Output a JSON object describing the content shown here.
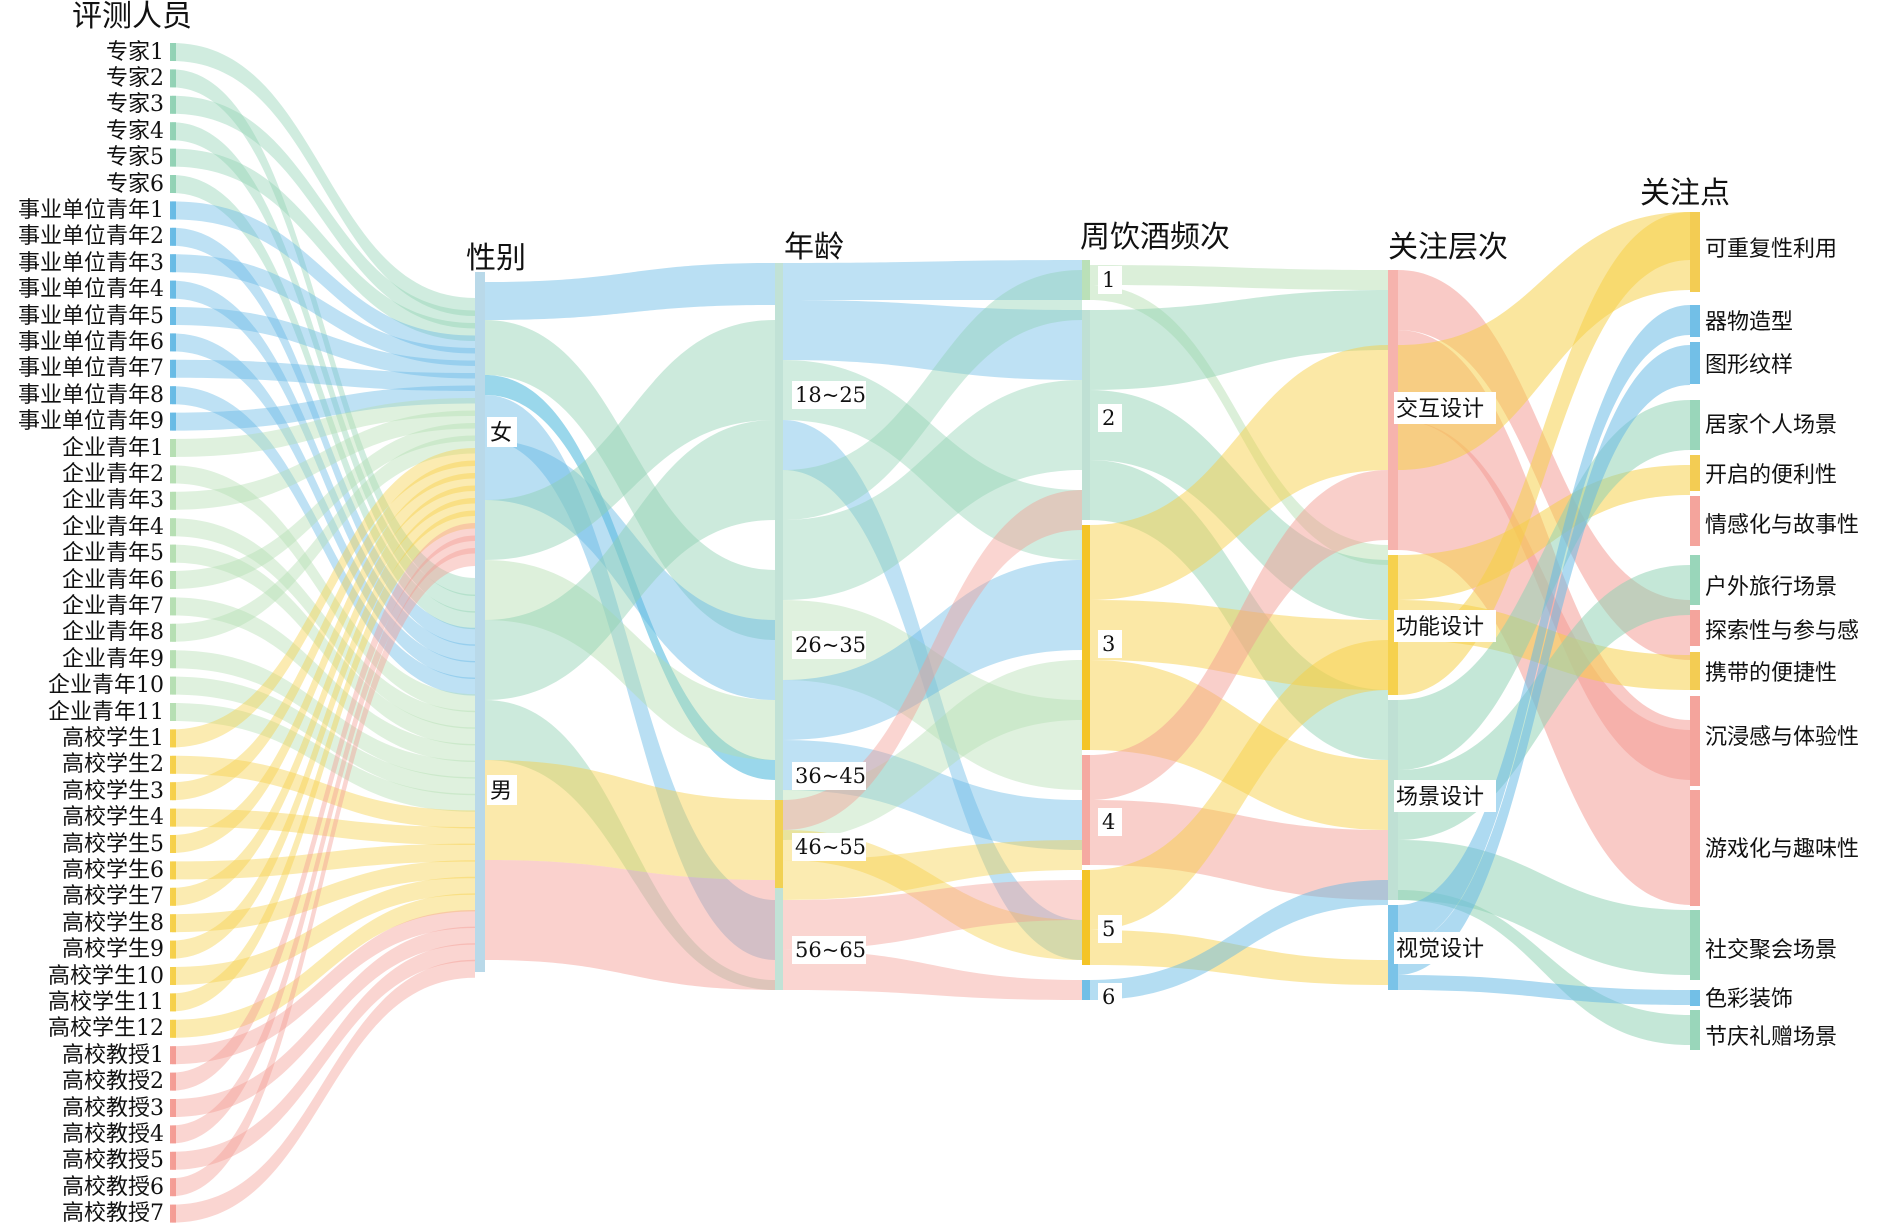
{
  "column_titles": [
    "评测人员",
    "性别",
    "年龄",
    "周饮酒频次",
    "关注层次",
    "关注点"
  ],
  "palette": {
    "expert": "#8ED1B2",
    "institution": "#63B8E4",
    "enterprise": "#B3DDB0",
    "student": "#F6CF45",
    "professor": "#F39A91",
    "female_highlight": "#1EA6D3",
    "frequency_bar": "#F3C11B",
    "focus_bar": "#F2C640"
  },
  "people": [
    {
      "label": "专家1",
      "group": "expert"
    },
    {
      "label": "专家2",
      "group": "expert"
    },
    {
      "label": "专家3",
      "group": "expert"
    },
    {
      "label": "专家4",
      "group": "expert"
    },
    {
      "label": "专家5",
      "group": "expert"
    },
    {
      "label": "专家6",
      "group": "expert"
    },
    {
      "label": "事业单位青年1",
      "group": "institution"
    },
    {
      "label": "事业单位青年2",
      "group": "institution"
    },
    {
      "label": "事业单位青年3",
      "group": "institution"
    },
    {
      "label": "事业单位青年4",
      "group": "institution"
    },
    {
      "label": "事业单位青年5",
      "group": "institution"
    },
    {
      "label": "事业单位青年6",
      "group": "institution"
    },
    {
      "label": "事业单位青年7",
      "group": "institution"
    },
    {
      "label": "事业单位青年8",
      "group": "institution"
    },
    {
      "label": "事业单位青年9",
      "group": "institution"
    },
    {
      "label": "企业青年1",
      "group": "enterprise"
    },
    {
      "label": "企业青年2",
      "group": "enterprise"
    },
    {
      "label": "企业青年3",
      "group": "enterprise"
    },
    {
      "label": "企业青年4",
      "group": "enterprise"
    },
    {
      "label": "企业青年5",
      "group": "enterprise"
    },
    {
      "label": "企业青年6",
      "group": "enterprise"
    },
    {
      "label": "企业青年7",
      "group": "enterprise"
    },
    {
      "label": "企业青年8",
      "group": "enterprise"
    },
    {
      "label": "企业青年9",
      "group": "enterprise"
    },
    {
      "label": "企业青年10",
      "group": "enterprise"
    },
    {
      "label": "企业青年11",
      "group": "enterprise"
    },
    {
      "label": "高校学生1",
      "group": "student"
    },
    {
      "label": "高校学生2",
      "group": "student"
    },
    {
      "label": "高校学生3",
      "group": "student"
    },
    {
      "label": "高校学生4",
      "group": "student"
    },
    {
      "label": "高校学生5",
      "group": "student"
    },
    {
      "label": "高校学生6",
      "group": "student"
    },
    {
      "label": "高校学生7",
      "group": "student"
    },
    {
      "label": "高校学生8",
      "group": "student"
    },
    {
      "label": "高校学生9",
      "group": "student"
    },
    {
      "label": "高校学生10",
      "group": "student"
    },
    {
      "label": "高校学生11",
      "group": "student"
    },
    {
      "label": "高校学生12",
      "group": "student"
    },
    {
      "label": "高校教授1",
      "group": "professor"
    },
    {
      "label": "高校教授2",
      "group": "professor"
    },
    {
      "label": "高校教授3",
      "group": "professor"
    },
    {
      "label": "高校教授4",
      "group": "professor"
    },
    {
      "label": "高校教授5",
      "group": "professor"
    },
    {
      "label": "高校教授6",
      "group": "professor"
    },
    {
      "label": "高校教授7",
      "group": "professor"
    }
  ],
  "gender": [
    {
      "label": "女"
    },
    {
      "label": "男"
    }
  ],
  "age": [
    {
      "label": "18~25"
    },
    {
      "label": "26~35"
    },
    {
      "label": "36~45"
    },
    {
      "label": "46~55"
    },
    {
      "label": "56~65"
    }
  ],
  "frequency": [
    {
      "label": "1"
    },
    {
      "label": "2"
    },
    {
      "label": "3"
    },
    {
      "label": "4"
    },
    {
      "label": "5"
    },
    {
      "label": "6"
    }
  ],
  "level": [
    {
      "label": "交互设计"
    },
    {
      "label": "功能设计"
    },
    {
      "label": "场景设计"
    },
    {
      "label": "视觉设计"
    }
  ],
  "focus": [
    {
      "label": "可重复性利用"
    },
    {
      "label": "器物造型"
    },
    {
      "label": "图形纹样"
    },
    {
      "label": "居家个人场景"
    },
    {
      "label": "开启的便利性"
    },
    {
      "label": "情感化与故事性"
    },
    {
      "label": "户外旅行场景"
    },
    {
      "label": "探索性与参与感"
    },
    {
      "label": "携带的便捷性"
    },
    {
      "label": "沉浸感与体验性"
    },
    {
      "label": "游戏化与趣味性"
    },
    {
      "label": "社交聚会场景"
    },
    {
      "label": "色彩装饰"
    },
    {
      "label": "节庆礼赠场景"
    }
  ]
}
